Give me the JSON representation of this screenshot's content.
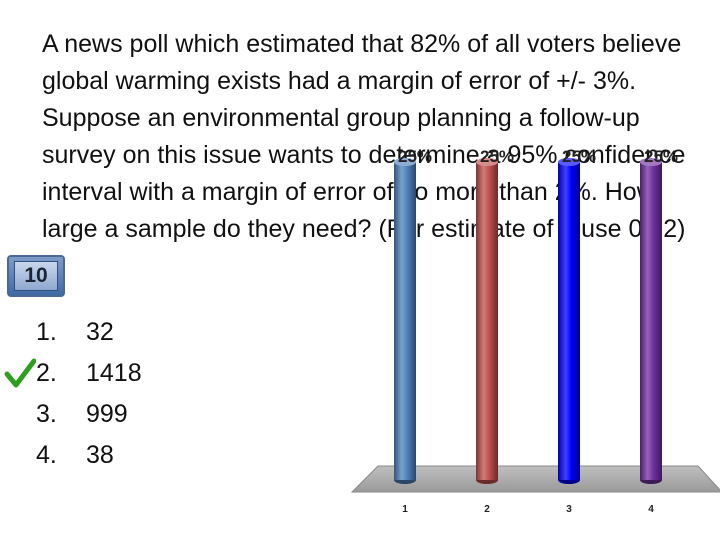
{
  "slide": {
    "question": "A news poll which estimated that 82% of all voters believe global warming exists had a margin of error of +/- 3%.  Suppose an environmental group planning a follow-up survey on this issue wants to determine a 95% confidence interval with a margin of error of no more than 2%.  How large a sample do they need? (For estimate of p use 0.82)",
    "timer": "10",
    "answers": [
      {
        "number": "1.",
        "text": "32",
        "correct": false
      },
      {
        "number": "2.",
        "text": "1418",
        "correct": true
      },
      {
        "number": "3.",
        "text": "999",
        "correct": false
      },
      {
        "number": "4.",
        "text": "38",
        "correct": false
      }
    ]
  },
  "colors": {
    "bar_1": "#4f81bd",
    "bar_2": "#c0504d",
    "bar_3": "#0000ff",
    "bar_4": "#7030a0",
    "checkmark": "#2e9e1e"
  },
  "icons": {
    "check": "check-icon"
  },
  "chart_data": {
    "type": "bar",
    "categories": [
      "1",
      "2",
      "3",
      "4"
    ],
    "values": [
      25,
      25,
      25,
      25
    ],
    "value_labels": [
      "25%",
      "25%",
      "25%",
      "25%"
    ],
    "ylim": [
      0,
      25
    ],
    "grid": false,
    "legend": "none",
    "style": "3d-cylinder"
  }
}
